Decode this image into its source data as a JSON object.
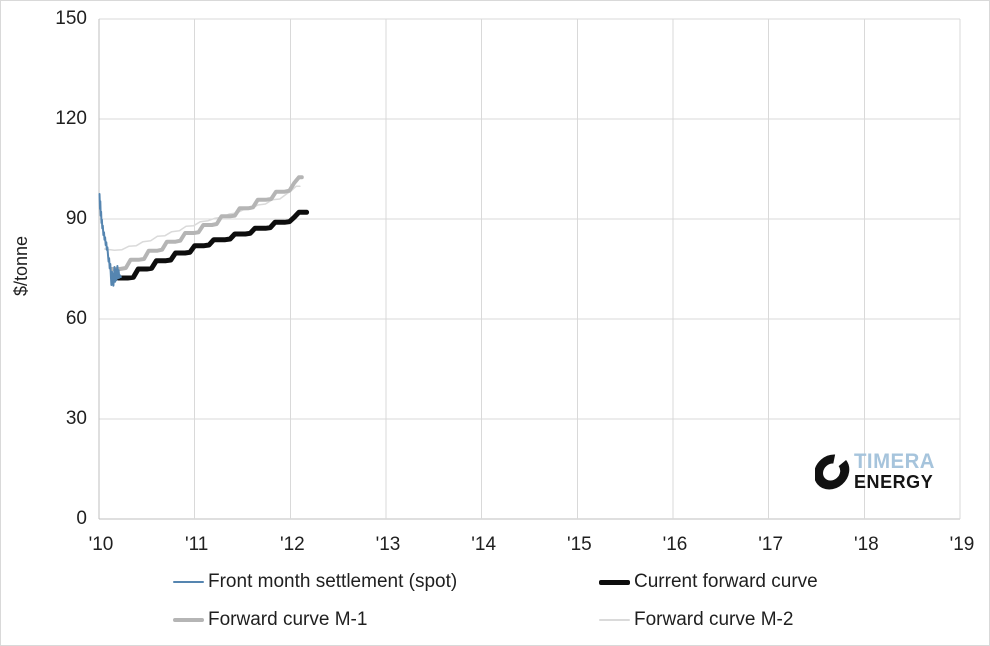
{
  "chart_data": {
    "type": "line",
    "title": "",
    "xlabel": "",
    "ylabel": "$/tonne",
    "xlim": [
      2010,
      2019
    ],
    "ylim": [
      0,
      150
    ],
    "grid": true,
    "legend_position": "bottom",
    "y_ticks": [
      {
        "value": 0,
        "label": "0"
      },
      {
        "value": 30,
        "label": "30"
      },
      {
        "value": 60,
        "label": "60"
      },
      {
        "value": 90,
        "label": "90"
      },
      {
        "value": 120,
        "label": "120"
      },
      {
        "value": 150,
        "label": "150"
      }
    ],
    "x_ticks": [
      {
        "value": 2010,
        "label": "'10"
      },
      {
        "value": 2011,
        "label": "'11"
      },
      {
        "value": 2012,
        "label": "'12"
      },
      {
        "value": 2013,
        "label": "'13"
      },
      {
        "value": 2014,
        "label": "'14"
      },
      {
        "value": 2015,
        "label": "'15"
      },
      {
        "value": 2016,
        "label": "'16"
      },
      {
        "value": 2017,
        "label": "'17"
      },
      {
        "value": 2018,
        "label": "'18"
      },
      {
        "value": 2019,
        "label": "'19"
      }
    ],
    "colors": {
      "gridline": "#d9d9d9",
      "axis": "#bfbfbf",
      "text": "#1f1f1f"
    },
    "series": [
      {
        "name": "Front month settlement (spot)",
        "color": "#5585b0",
        "width": 2,
        "points": [
          [
            2010.005,
            97.5
          ],
          [
            2010.01,
            93.0
          ],
          [
            2010.014,
            95.3
          ],
          [
            2010.018,
            91.0
          ],
          [
            2010.022,
            92.2
          ],
          [
            2010.026,
            88.8
          ],
          [
            2010.03,
            89.8
          ],
          [
            2010.034,
            87.2
          ],
          [
            2010.04,
            88.0
          ],
          [
            2010.046,
            85.2
          ],
          [
            2010.052,
            86.0
          ],
          [
            2010.058,
            83.8
          ],
          [
            2010.064,
            84.5
          ],
          [
            2010.07,
            82.2
          ],
          [
            2010.076,
            83.0
          ],
          [
            2010.082,
            80.8
          ],
          [
            2010.088,
            81.5
          ],
          [
            2010.094,
            79.2
          ],
          [
            2010.1,
            77.2
          ],
          [
            2010.106,
            78.2
          ],
          [
            2010.112,
            75.2
          ],
          [
            2010.118,
            76.5
          ],
          [
            2010.124,
            72.8
          ],
          [
            2010.13,
            70.2
          ],
          [
            2010.136,
            74.2
          ],
          [
            2010.14,
            70.6
          ],
          [
            2010.145,
            73.6
          ],
          [
            2010.15,
            70.0
          ],
          [
            2010.156,
            72.2
          ],
          [
            2010.162,
            75.6
          ],
          [
            2010.168,
            71.2
          ],
          [
            2010.174,
            74.9
          ],
          [
            2010.18,
            71.6
          ],
          [
            2010.186,
            73.2
          ],
          [
            2010.192,
            75.9
          ],
          [
            2010.198,
            72.2
          ],
          [
            2010.205,
            74.6
          ],
          [
            2010.212,
            72.4
          ],
          [
            2010.22,
            73.1
          ],
          [
            2010.228,
            72.6
          ]
        ]
      },
      {
        "name": "Current forward curve",
        "color": "#0d0d0d",
        "width": 5,
        "points": [
          [
            2010.2,
            72.3
          ],
          [
            2010.3,
            72.3
          ],
          [
            2010.36,
            72.5
          ],
          [
            2010.41,
            75.0
          ],
          [
            2010.5,
            75.0
          ],
          [
            2010.55,
            75.2
          ],
          [
            2010.6,
            77.5
          ],
          [
            2010.7,
            77.5
          ],
          [
            2010.75,
            77.7
          ],
          [
            2010.8,
            79.8
          ],
          [
            2010.9,
            79.8
          ],
          [
            2010.95,
            80.0
          ],
          [
            2011.0,
            82.0
          ],
          [
            2011.1,
            82.0
          ],
          [
            2011.15,
            82.2
          ],
          [
            2011.2,
            83.8
          ],
          [
            2011.32,
            83.8
          ],
          [
            2011.37,
            84.0
          ],
          [
            2011.42,
            85.5
          ],
          [
            2011.53,
            85.5
          ],
          [
            2011.58,
            85.7
          ],
          [
            2011.63,
            87.2
          ],
          [
            2011.74,
            87.2
          ],
          [
            2011.79,
            87.4
          ],
          [
            2011.84,
            89.0
          ],
          [
            2011.94,
            89.0
          ],
          [
            2011.99,
            89.2
          ],
          [
            2012.04,
            90.5
          ],
          [
            2012.09,
            92.0
          ],
          [
            2012.17,
            92.0
          ]
        ]
      },
      {
        "name": "Forward curve M-1",
        "color": "#b5b5b5",
        "width": 4,
        "points": [
          [
            2010.13,
            75.0
          ],
          [
            2010.22,
            75.0
          ],
          [
            2010.28,
            75.3
          ],
          [
            2010.33,
            77.8
          ],
          [
            2010.42,
            77.8
          ],
          [
            2010.47,
            78.0
          ],
          [
            2010.52,
            80.5
          ],
          [
            2010.61,
            80.5
          ],
          [
            2010.66,
            80.8
          ],
          [
            2010.71,
            83.2
          ],
          [
            2010.8,
            83.2
          ],
          [
            2010.85,
            83.5
          ],
          [
            2010.9,
            85.8
          ],
          [
            2010.99,
            85.8
          ],
          [
            2011.04,
            86.0
          ],
          [
            2011.09,
            88.2
          ],
          [
            2011.18,
            88.2
          ],
          [
            2011.23,
            88.5
          ],
          [
            2011.28,
            90.8
          ],
          [
            2011.37,
            90.8
          ],
          [
            2011.42,
            91.0
          ],
          [
            2011.47,
            93.2
          ],
          [
            2011.56,
            93.2
          ],
          [
            2011.61,
            93.5
          ],
          [
            2011.66,
            95.8
          ],
          [
            2011.75,
            95.8
          ],
          [
            2011.8,
            96.0
          ],
          [
            2011.85,
            98.2
          ],
          [
            2011.94,
            98.2
          ],
          [
            2011.99,
            98.5
          ],
          [
            2012.04,
            100.8
          ],
          [
            2012.09,
            102.5
          ],
          [
            2012.12,
            102.5
          ]
        ]
      },
      {
        "name": "Forward curve M-2",
        "color": "#dadada",
        "width": 1.5,
        "points": [
          [
            2010.06,
            81.0
          ],
          [
            2010.16,
            80.6
          ],
          [
            2010.24,
            80.8
          ],
          [
            2010.31,
            81.8
          ],
          [
            2010.39,
            82.0
          ],
          [
            2010.46,
            83.2
          ],
          [
            2010.54,
            83.5
          ],
          [
            2010.61,
            84.8
          ],
          [
            2010.69,
            85.0
          ],
          [
            2010.76,
            86.2
          ],
          [
            2010.84,
            86.5
          ],
          [
            2010.91,
            87.8
          ],
          [
            2010.99,
            88.0
          ],
          [
            2011.06,
            89.2
          ],
          [
            2011.14,
            89.5
          ],
          [
            2011.21,
            90.2
          ],
          [
            2011.29,
            90.5
          ],
          [
            2011.36,
            91.5
          ],
          [
            2011.44,
            91.8
          ],
          [
            2011.51,
            92.8
          ],
          [
            2011.59,
            93.0
          ],
          [
            2011.66,
            94.2
          ],
          [
            2011.74,
            94.5
          ],
          [
            2011.81,
            95.8
          ],
          [
            2011.89,
            96.0
          ],
          [
            2011.96,
            97.5
          ],
          [
            2012.01,
            98.5
          ],
          [
            2012.06,
            99.8
          ],
          [
            2012.1,
            99.8
          ]
        ]
      }
    ]
  },
  "logo": {
    "line1": "TIMERA",
    "line2": "ENERGY",
    "line1_color": "#a6c4dc",
    "line2_color": "#151515"
  }
}
